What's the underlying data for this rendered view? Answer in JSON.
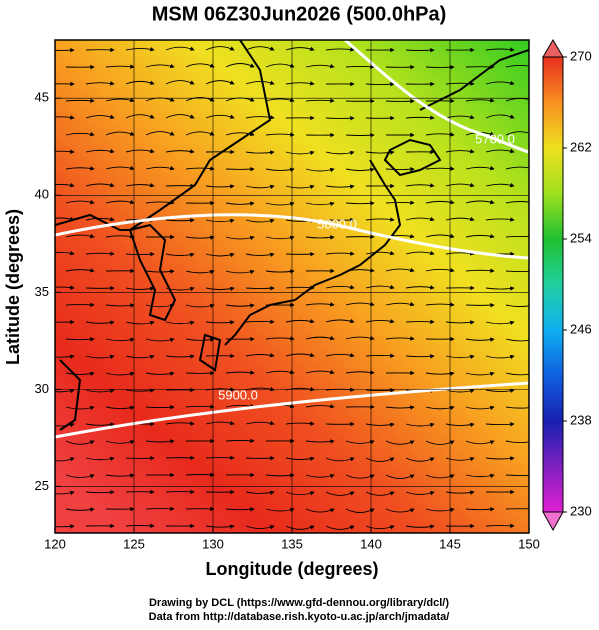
{
  "title": "MSM 06Z30Jun2026 (500.0hPa)",
  "x_axis": {
    "label": "Longitude (degrees)",
    "lim": [
      120,
      150
    ],
    "ticks": [
      120,
      125,
      130,
      135,
      140,
      145,
      150
    ]
  },
  "y_axis": {
    "label": "Latitude  (degrees)",
    "lim": [
      22.6,
      48
    ],
    "ticks": [
      25,
      30,
      35,
      40,
      45
    ]
  },
  "colorbar": {
    "lim": [
      230,
      270
    ],
    "ticks": [
      230,
      238,
      246,
      254,
      262,
      270
    ]
  },
  "contour_labels": [
    "5900.0",
    "5800.0",
    "5700.0"
  ],
  "footer": [
    "Drawing by DCL (https://www.gfd-dennou.org/library/dcl/)",
    "Data from http://database.rish.kyoto-u.ac.jp/arch/jmadata/"
  ]
}
